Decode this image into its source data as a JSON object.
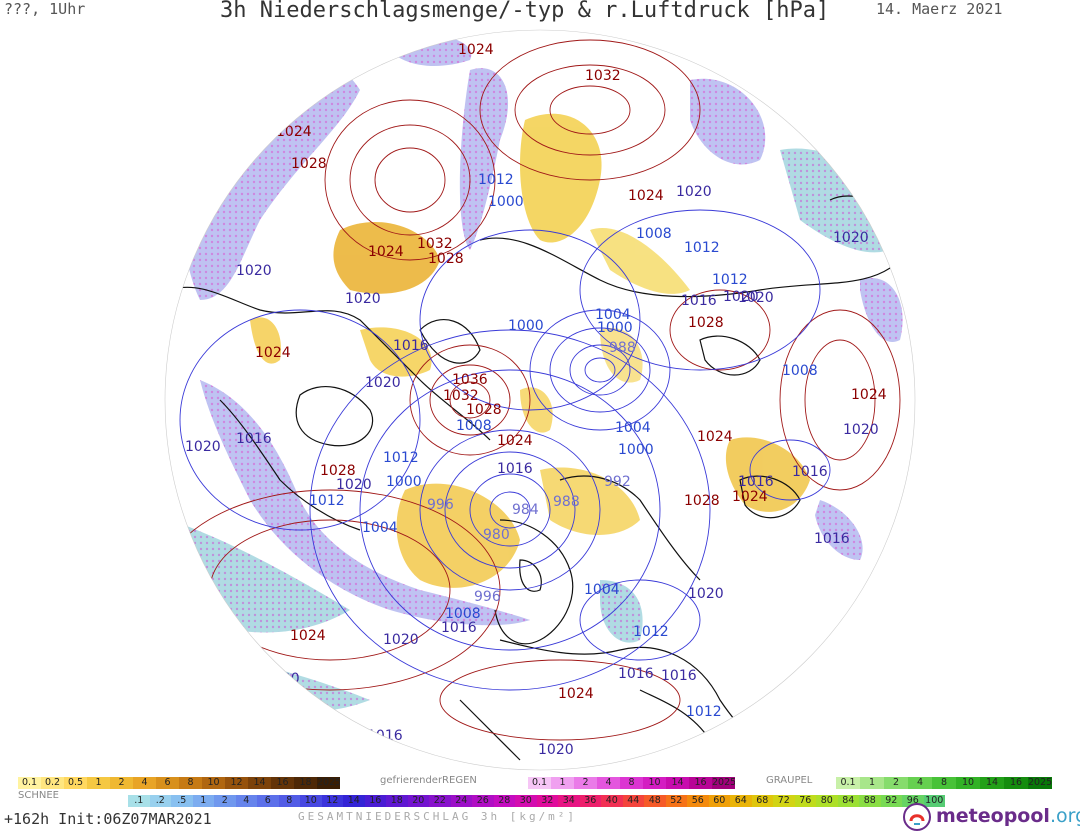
{
  "header": {
    "left": "???, 1Uhr",
    "title": "3h Niederschlagsmenge/-typ & r.Luftdruck [hPa]",
    "date": "14. Maerz 2021"
  },
  "isobar_labels": [
    {
      "text": "1020",
      "color": "#3a2aa0"
    },
    {
      "text": "1024",
      "color": "#8b0000"
    },
    {
      "text": "1032",
      "color": "#8b0000"
    },
    {
      "text": "1024",
      "color": "#8b0000"
    },
    {
      "text": "1028",
      "color": "#8b0000"
    },
    {
      "text": "1012",
      "color": "#2a4ad0"
    },
    {
      "text": "1000",
      "color": "#2a4ad0"
    },
    {
      "text": "1024",
      "color": "#8b0000"
    },
    {
      "text": "1020",
      "color": "#3a2aa0"
    },
    {
      "text": "1020",
      "color": "#3a2aa0"
    },
    {
      "text": "1032",
      "color": "#8b0000"
    },
    {
      "text": "1024",
      "color": "#8b0000"
    },
    {
      "text": "1028",
      "color": "#8b0000"
    },
    {
      "text": "1020",
      "color": "#3a2aa0"
    },
    {
      "text": "1008",
      "color": "#2a4ad0"
    },
    {
      "text": "1012",
      "color": "#2a4ad0"
    },
    {
      "text": "1020",
      "color": "#3a2aa0"
    },
    {
      "text": "1020",
      "color": "#3a2aa0"
    },
    {
      "text": "1012",
      "color": "#2a4ad0"
    },
    {
      "text": "1016",
      "color": "#3a2aa0"
    },
    {
      "text": "1020",
      "color": "#3a2aa0"
    },
    {
      "text": "1004",
      "color": "#2a4ad0"
    },
    {
      "text": "1000",
      "color": "#2a4ad0"
    },
    {
      "text": "1000",
      "color": "#2a4ad0"
    },
    {
      "text": "1028",
      "color": "#8b0000"
    },
    {
      "text": "1016",
      "color": "#3a2aa0"
    },
    {
      "text": "1024",
      "color": "#8b0000"
    },
    {
      "text": "988",
      "color": "#7070d0"
    },
    {
      "text": "1008",
      "color": "#2a4ad0"
    },
    {
      "text": "1020",
      "color": "#3a2aa0"
    },
    {
      "text": "1036",
      "color": "#8b0000"
    },
    {
      "text": "1032",
      "color": "#8b0000"
    },
    {
      "text": "1028",
      "color": "#8b0000"
    },
    {
      "text": "1024",
      "color": "#8b0000"
    },
    {
      "text": "1008",
      "color": "#2a4ad0"
    },
    {
      "text": "1016",
      "color": "#3a2aa0"
    },
    {
      "text": "1020",
      "color": "#3a2aa0"
    },
    {
      "text": "1024",
      "color": "#8b0000"
    },
    {
      "text": "1020",
      "color": "#3a2aa0"
    },
    {
      "text": "1004",
      "color": "#2a4ad0"
    },
    {
      "text": "1000",
      "color": "#2a4ad0"
    },
    {
      "text": "1024",
      "color": "#8b0000"
    },
    {
      "text": "1028",
      "color": "#8b0000"
    },
    {
      "text": "1012",
      "color": "#2a4ad0"
    },
    {
      "text": "1016",
      "color": "#3a2aa0"
    },
    {
      "text": "1020",
      "color": "#3a2aa0"
    },
    {
      "text": "1000",
      "color": "#2a4ad0"
    },
    {
      "text": "1016",
      "color": "#3a2aa0"
    },
    {
      "text": "1012",
      "color": "#2a4ad0"
    },
    {
      "text": "1016",
      "color": "#3a2aa0"
    },
    {
      "text": "996",
      "color": "#7070d0"
    },
    {
      "text": "988",
      "color": "#7070d0"
    },
    {
      "text": "992",
      "color": "#7070d0"
    },
    {
      "text": "1028",
      "color": "#8b0000"
    },
    {
      "text": "1024",
      "color": "#8b0000"
    },
    {
      "text": "1016",
      "color": "#3a2aa0"
    },
    {
      "text": "984",
      "color": "#7070d0"
    },
    {
      "text": "1004",
      "color": "#2a4ad0"
    },
    {
      "text": "980",
      "color": "#7070d0"
    },
    {
      "text": "996",
      "color": "#7070d0"
    },
    {
      "text": "1004",
      "color": "#2a4ad0"
    },
    {
      "text": "1008",
      "color": "#2a4ad0"
    },
    {
      "text": "1016",
      "color": "#3a2aa0"
    },
    {
      "text": "1020",
      "color": "#3a2aa0"
    },
    {
      "text": "1024",
      "color": "#8b0000"
    },
    {
      "text": "1020",
      "color": "#3a2aa0"
    },
    {
      "text": "1012",
      "color": "#2a4ad0"
    },
    {
      "text": "1016",
      "color": "#3a2aa0"
    },
    {
      "text": "1016",
      "color": "#3a2aa0"
    },
    {
      "text": "1020",
      "color": "#3a2aa0"
    },
    {
      "text": "1024",
      "color": "#8b0000"
    },
    {
      "text": "1012",
      "color": "#2a4ad0"
    },
    {
      "text": "1016",
      "color": "#3a2aa0"
    },
    {
      "text": "1020",
      "color": "#3a2aa0"
    }
  ],
  "legend": {
    "snow": {
      "title": "SCHNEE",
      "labels": [
        "0.1",
        "0.2",
        "0.5",
        "1",
        "2",
        "4",
        "6",
        "8",
        "10",
        "12",
        "14",
        "16",
        "18",
        "2025+"
      ],
      "colors": [
        "#fff3a0",
        "#ffe680",
        "#ffd860",
        "#f5c842",
        "#efb832",
        "#e8a426",
        "#d8901c",
        "#c67a14",
        "#b06610",
        "#96520c",
        "#7c420a",
        "#643408",
        "#4e2806",
        "#3a1e04"
      ]
    },
    "freezing_rain": {
      "title": "gefrierenderREGEN",
      "labels": [
        "0.1",
        "1",
        "2",
        "4",
        "8",
        "10",
        "14",
        "16",
        "2025+"
      ],
      "colors": [
        "#f6c6f6",
        "#f0a0f0",
        "#ea7ae8",
        "#e456de",
        "#dc34d2",
        "#d41cc2",
        "#c80cae",
        "#b80496",
        "#a0007a"
      ]
    },
    "graupel": {
      "title": "GRAUPEL",
      "labels": [
        "0.1",
        "1",
        "2",
        "4",
        "8",
        "10",
        "14",
        "16",
        "2025+"
      ],
      "colors": [
        "#c8f0a8",
        "#a8e68a",
        "#86dc6c",
        "#66d050",
        "#48c238",
        "#32b226",
        "#22a018",
        "#148c0e",
        "#087808"
      ]
    },
    "total": {
      "title": "GESAMTNIEDERSCHLAG 3h [kg/m²]",
      "labels": [
        ".1",
        ".2",
        ".5",
        "1",
        "2",
        "4",
        "6",
        "8",
        "10",
        "12",
        "14",
        "16",
        "18",
        "20",
        "22",
        "24",
        "26",
        "28",
        "30",
        "32",
        "34",
        "36",
        "40",
        "44",
        "48",
        "52",
        "56",
        "60",
        "64",
        "68",
        "72",
        "76",
        "80",
        "84",
        "88",
        "92",
        "96",
        "100"
      ],
      "colors": [
        "#a8e0e8",
        "#98d0ee",
        "#88c0f0",
        "#7cacf0",
        "#7098ee",
        "#6684ec",
        "#5c70ea",
        "#525ce6",
        "#4848e2",
        "#3c34dc",
        "#3424d6",
        "#4a1cd4",
        "#6018d2",
        "#7414d0",
        "#8812cc",
        "#9c10c8",
        "#b00ec4",
        "#c40cc0",
        "#d40cb0",
        "#e00c9c",
        "#e81484",
        "#ee206c",
        "#f23054",
        "#f4443c",
        "#f65a28",
        "#f67218",
        "#f48a0c",
        "#f0a008",
        "#eab408",
        "#e0c60c",
        "#d2d414",
        "#c0dc1c",
        "#aee028",
        "#9ce034",
        "#8ade44",
        "#78da54",
        "#66d464",
        "#56cc74"
      ]
    }
  },
  "footer": {
    "forecast": "+162h Init:06Z07MAR2021",
    "caption": "GESAMTNIEDERSCHLAG 3h [kg/m²]",
    "logo": "meteopool",
    "logo_tld": ".org"
  }
}
